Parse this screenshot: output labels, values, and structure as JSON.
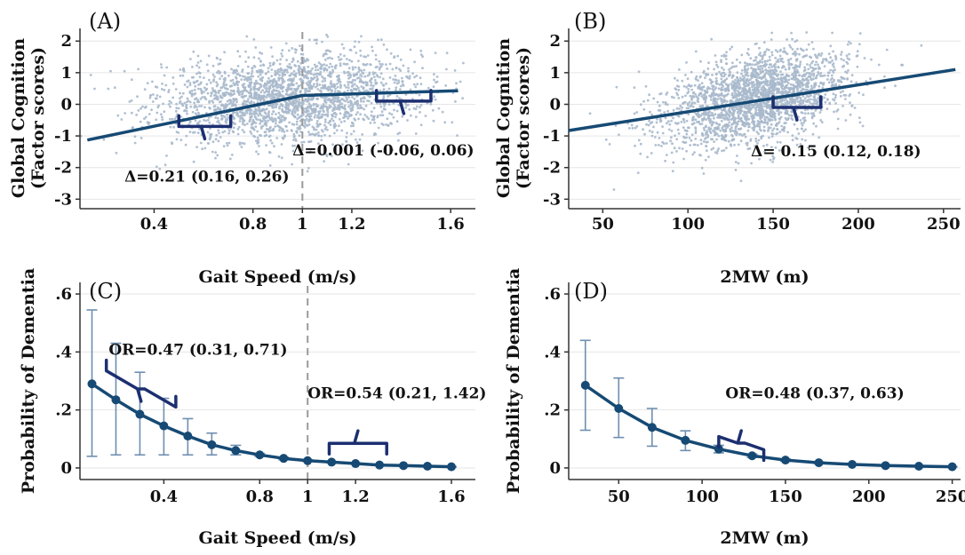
{
  "colors": {
    "scatter": "#a9b9cc",
    "line": "#164a74",
    "errorbar": "#6f8fb0",
    "bracket": "#1c2f70",
    "grid": "#e6e6e6",
    "refline": "#9a9a9a",
    "axis": "#333333"
  },
  "chart_data": [
    {
      "id": "A",
      "type": "scatter",
      "panel_label": "(A)",
      "xlabel": "Gait Speed (m/s)",
      "ylabel": [
        "Global Cognition",
        "(Factor scores)"
      ],
      "xlim": [
        0.1,
        1.7
      ],
      "ylim": [
        -3.3,
        2.4
      ],
      "x_ticks": [
        0.4,
        0.8,
        1,
        1.2,
        1.6
      ],
      "x_tick_labels": [
        "0.4",
        "0.8",
        "1",
        "1.2",
        "1.6"
      ],
      "y_ticks": [
        2,
        1,
        0,
        -1,
        -2,
        -3
      ],
      "y_tick_labels": [
        "2",
        "1",
        "0",
        "-1",
        "-2",
        "-3"
      ],
      "grid": true,
      "vline_x": 1,
      "scatter_cloud": {
        "n": 2300,
        "x_center": 0.95,
        "x_sd": 0.27,
        "slope": 0.45,
        "noise_sd": 0.7
      },
      "fit": {
        "x": [
          0.13,
          1.0,
          1.63
        ],
        "y": [
          -1.13,
          0.28,
          0.43
        ]
      },
      "brackets": [
        {
          "x": [
            0.5,
            0.71
          ],
          "y": -0.7,
          "orient": "down"
        },
        {
          "x": [
            1.3,
            1.52
          ],
          "y": 0.1,
          "orient": "down"
        }
      ],
      "annotations": [
        {
          "text": "Δ=0.21 (0.16, 0.26)",
          "x": 0.28,
          "y": -2.45
        },
        {
          "text": "Δ=0.001 (-0.06, 0.06)",
          "x": 0.96,
          "y": -1.62
        }
      ]
    },
    {
      "id": "B",
      "type": "scatter",
      "panel_label": "(B)",
      "xlabel": "2MW (m)",
      "ylabel": [
        "Global Cognition",
        "(Factor scores)"
      ],
      "xlim": [
        30,
        260
      ],
      "ylim": [
        -3.3,
        2.4
      ],
      "x_ticks": [
        50,
        100,
        150,
        200,
        250
      ],
      "x_tick_labels": [
        "50",
        "100",
        "150",
        "200",
        "250"
      ],
      "y_ticks": [
        2,
        1,
        0,
        -1,
        -2,
        -3
      ],
      "y_tick_labels": [
        "2",
        "1",
        "0",
        "-1",
        "-2",
        "-3"
      ],
      "grid": true,
      "scatter_cloud": {
        "n": 2300,
        "x_center": 140,
        "x_sd": 27,
        "slope": 0.012,
        "noise_sd": 0.7
      },
      "fit": {
        "x": [
          30,
          257
        ],
        "y": [
          -0.83,
          1.1
        ]
      },
      "brackets": [
        {
          "x": [
            150,
            178
          ],
          "y": -0.1,
          "orient": "down"
        }
      ],
      "annotations": [
        {
          "text": "Δ= 0.15 (0.12, 0.18)",
          "x": 137,
          "y": -1.65
        }
      ]
    },
    {
      "id": "C",
      "type": "line",
      "panel_label": "(C)",
      "xlabel": "Gait Speed (m/s)",
      "ylabel": [
        "Probability of Dementia"
      ],
      "xlim": [
        0.05,
        1.7
      ],
      "ylim": [
        -0.04,
        0.64
      ],
      "x_ticks": [
        0.4,
        0.8,
        1,
        1.2,
        1.6
      ],
      "x_tick_labels": [
        "0.4",
        "0.8",
        "1",
        "1.2",
        "1.6"
      ],
      "y_ticks": [
        0.6,
        0.4,
        0.2,
        0
      ],
      "y_tick_labels": [
        ".6",
        ".4",
        ".2",
        "0"
      ],
      "grid": true,
      "vline_x": 1,
      "x": [
        0.1,
        0.2,
        0.3,
        0.4,
        0.5,
        0.6,
        0.7,
        0.8,
        0.9,
        1.0,
        1.1,
        1.2,
        1.3,
        1.4,
        1.5,
        1.6
      ],
      "y": [
        0.29,
        0.235,
        0.185,
        0.145,
        0.11,
        0.08,
        0.06,
        0.045,
        0.033,
        0.025,
        0.02,
        0.015,
        0.01,
        0.008,
        0.006,
        0.004
      ],
      "err_low": [
        0.04,
        0.045,
        0.045,
        0.045,
        0.045,
        0.045,
        0.045,
        0.04,
        0.028,
        0.022,
        0.018,
        0.013,
        0.009,
        0.007,
        0.005,
        0.003
      ],
      "err_high": [
        0.545,
        0.43,
        0.33,
        0.24,
        0.17,
        0.12,
        0.078,
        0.05,
        0.037,
        0.028,
        0.022,
        0.017,
        0.011,
        0.009,
        0.007,
        0.005
      ],
      "brackets": [
        {
          "x": [
            0.16,
            0.45
          ],
          "y": 0.335,
          "orient": "down",
          "slant": -0.125
        },
        {
          "x": [
            1.09,
            1.33
          ],
          "y": 0.085,
          "orient": "up"
        }
      ],
      "annotations": [
        {
          "text": "OR=0.47 (0.31, 0.71)",
          "x": 0.17,
          "y": 0.39
        },
        {
          "text": "OR=0.54 (0.21, 1.42)",
          "x": 1.0,
          "y": 0.24
        }
      ]
    },
    {
      "id": "D",
      "type": "line",
      "panel_label": "(D)",
      "xlabel": "2MW (m)",
      "ylabel": [
        "Probability of Dementia"
      ],
      "xlim": [
        20,
        255
      ],
      "ylim": [
        -0.04,
        0.64
      ],
      "x_ticks": [
        50,
        100,
        150,
        200,
        250
      ],
      "x_tick_labels": [
        "50",
        "100",
        "150",
        "200",
        "250"
      ],
      "y_ticks": [
        0.6,
        0.4,
        0.2,
        0
      ],
      "y_tick_labels": [
        ".6",
        ".4",
        ".2",
        "0"
      ],
      "grid": true,
      "x": [
        30,
        50,
        70,
        90,
        110,
        130,
        150,
        170,
        190,
        210,
        230,
        250
      ],
      "y": [
        0.285,
        0.205,
        0.14,
        0.095,
        0.065,
        0.042,
        0.027,
        0.018,
        0.012,
        0.008,
        0.006,
        0.004
      ],
      "err_low": [
        0.13,
        0.105,
        0.075,
        0.06,
        0.052,
        0.036,
        0.023,
        0.015,
        0.01,
        0.006,
        0.004,
        0.003
      ],
      "err_high": [
        0.44,
        0.31,
        0.205,
        0.128,
        0.078,
        0.048,
        0.031,
        0.021,
        0.014,
        0.01,
        0.008,
        0.005
      ],
      "brackets": [
        {
          "x": [
            110,
            137
          ],
          "y": 0.108,
          "orient": "up",
          "slant": -0.045
        }
      ],
      "annotations": [
        {
          "text": "OR=0.48 (0.37, 0.63)",
          "x": 114,
          "y": 0.24
        }
      ]
    }
  ]
}
